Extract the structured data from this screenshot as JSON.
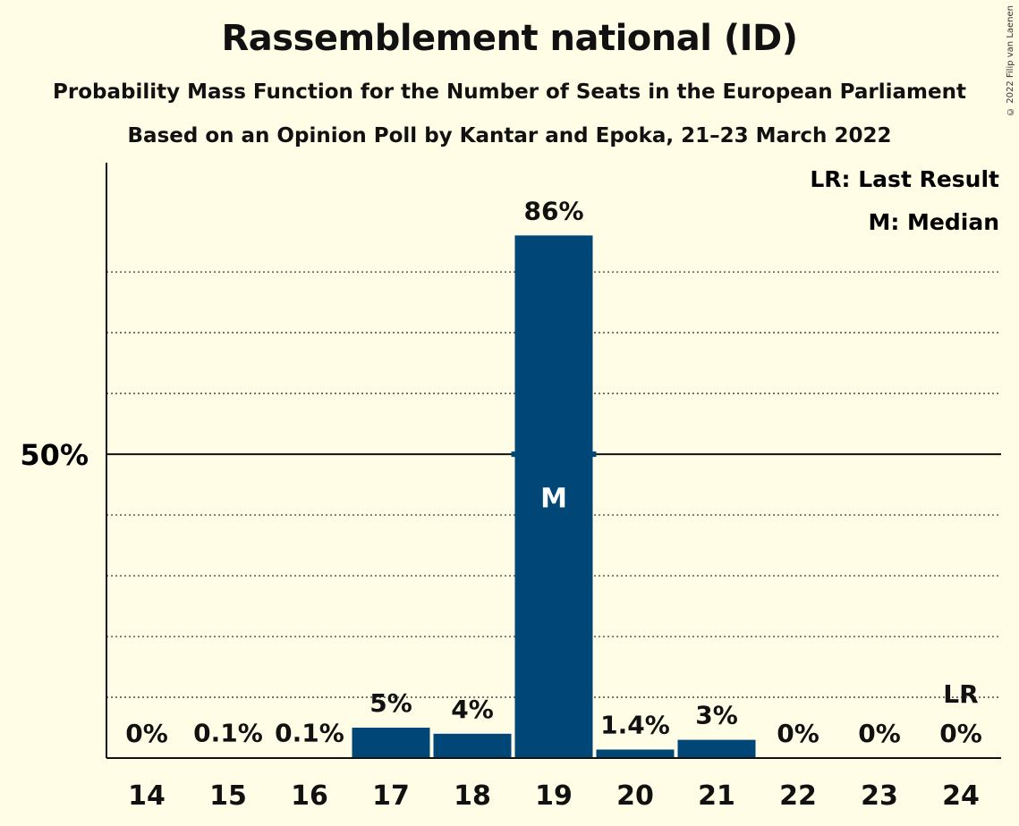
{
  "title": "Rassemblement national (ID)",
  "subtitle1": "Probability Mass Function for the Number of Seats in the European Parliament",
  "subtitle2": "Based on an Opinion Poll by Kantar and Epoka, 21–23 March 2022",
  "copyright": "© 2022 Filip van Laenen",
  "legend": {
    "last_result": "LR: Last Result",
    "median": "M: Median"
  },
  "colors": {
    "bar": "#004677",
    "background": "#FFFDE6",
    "axis": "#111111"
  },
  "chart_data": {
    "type": "bar",
    "categories": [
      "14",
      "15",
      "16",
      "17",
      "18",
      "19",
      "20",
      "21",
      "22",
      "23",
      "24"
    ],
    "values": [
      0,
      0.1,
      0.1,
      5,
      4,
      86,
      1.4,
      3,
      0,
      0,
      0
    ],
    "value_labels": [
      "0%",
      "0.1%",
      "0.1%",
      "5%",
      "4%",
      "86%",
      "1.4%",
      "3%",
      "0%",
      "0%",
      "0%"
    ],
    "ylim": [
      0,
      94
    ],
    "y_tick_label": "50%",
    "y_tick_value": 50,
    "gridlines": [
      10,
      20,
      30,
      40,
      60,
      70,
      80
    ],
    "median_category": "19",
    "median_marker": "M",
    "last_result_category": "24",
    "last_result_marker": "LR",
    "legend_position": "top-right"
  }
}
